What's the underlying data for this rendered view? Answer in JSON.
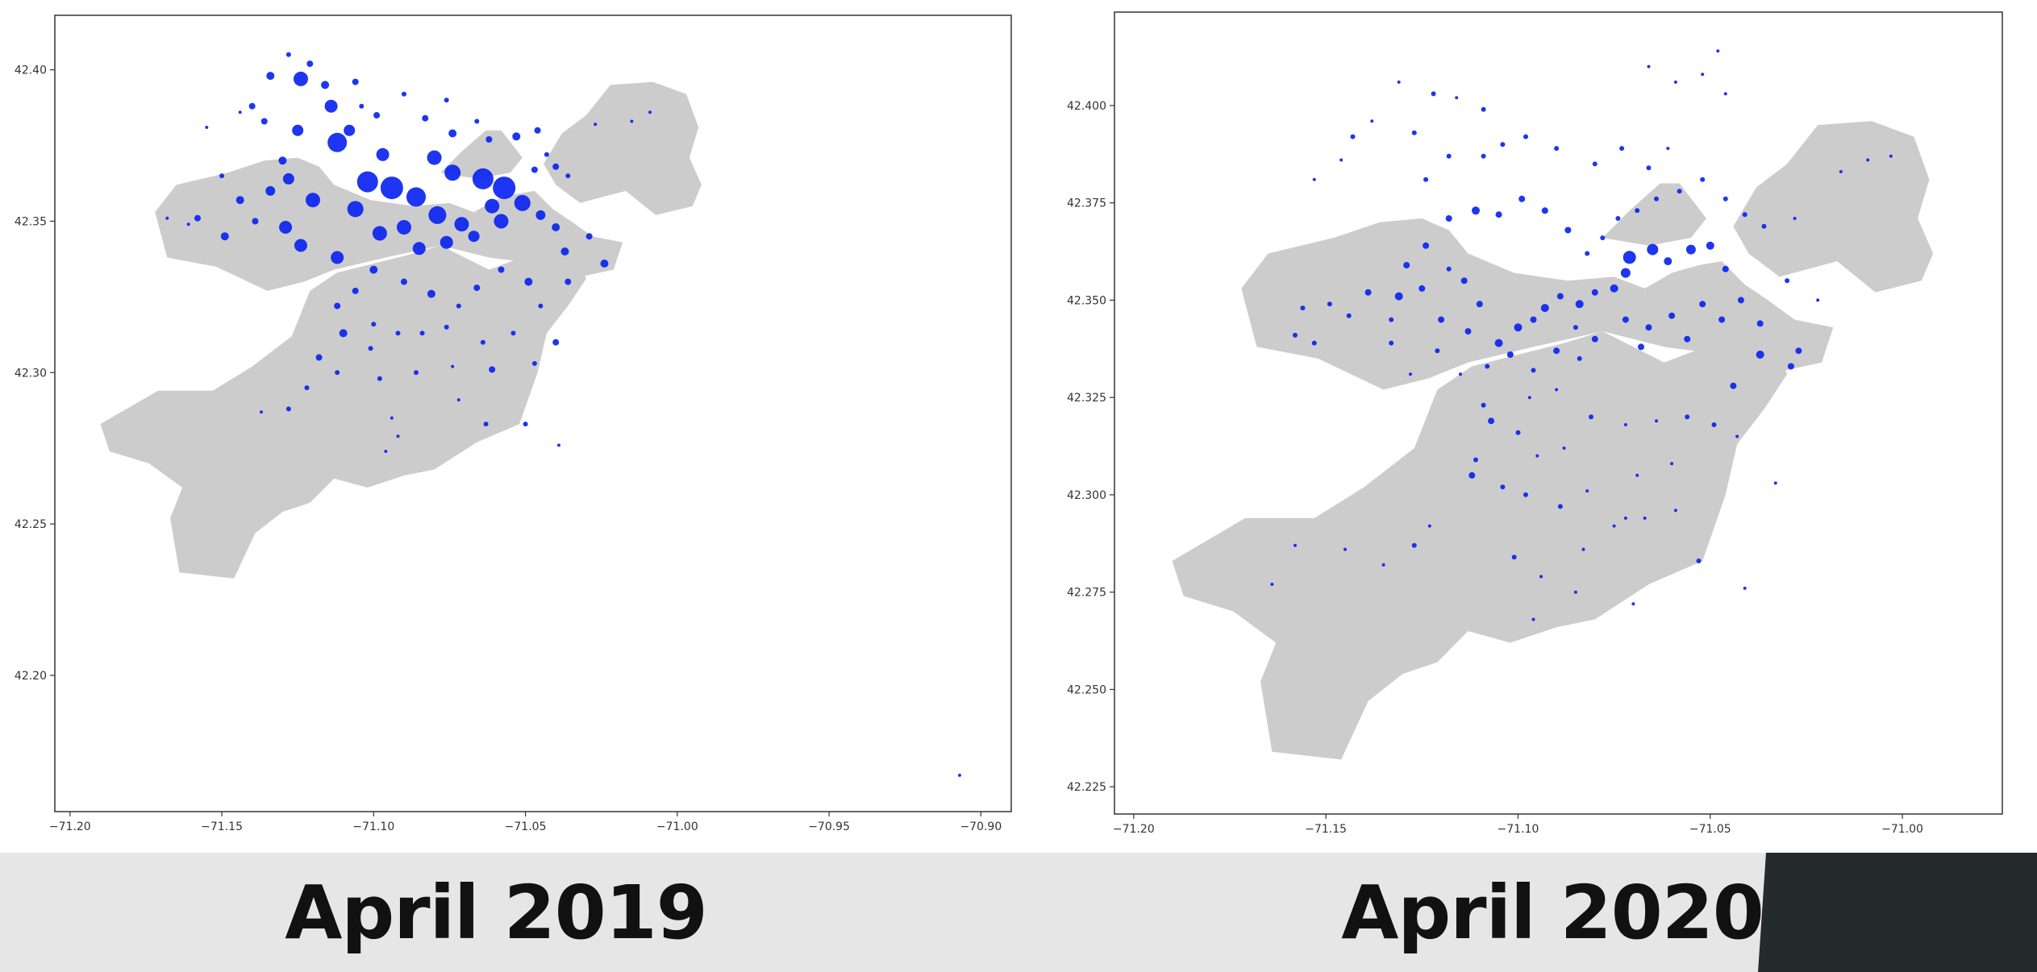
{
  "colors": {
    "land": "#cccccc",
    "marker": "#0b24f0",
    "banner": "#e6e6e6",
    "corner": "#252a2a",
    "caption": "#111111"
  },
  "captions": {
    "left": "April 2019",
    "right": "April 2020"
  },
  "chart_data": [
    {
      "type": "scatter",
      "title": "",
      "xlabel": "",
      "ylabel": "",
      "xlim": [
        -71.205,
        -70.89
      ],
      "ylim": [
        42.155,
        42.418
      ],
      "xticks": [
        -71.2,
        -71.15,
        -71.1,
        -71.05,
        -71.0,
        -70.95,
        -70.9
      ],
      "xtick_labels": [
        "−71.20",
        "−71.15",
        "−71.10",
        "−71.05",
        "−71.00",
        "−70.95",
        "−70.90"
      ],
      "yticks": [
        42.2,
        42.25,
        42.3,
        42.35,
        42.4
      ],
      "ytick_labels": [
        "42.20",
        "42.25",
        "42.30",
        "42.35",
        "42.40"
      ],
      "grid": false,
      "legend": "none",
      "background_map": "Boston neighborhoods (grey polygons)",
      "points": [
        [
          -71.124,
          42.397,
          9
        ],
        [
          -71.114,
          42.388,
          8
        ],
        [
          -71.112,
          42.376,
          12
        ],
        [
          -71.102,
          42.363,
          13
        ],
        [
          -71.094,
          42.361,
          14
        ],
        [
          -71.086,
          42.358,
          12
        ],
        [
          -71.079,
          42.352,
          11
        ],
        [
          -71.064,
          42.364,
          13
        ],
        [
          -71.057,
          42.361,
          14
        ],
        [
          -71.051,
          42.356,
          10
        ],
        [
          -71.058,
          42.35,
          9
        ],
        [
          -71.071,
          42.349,
          9
        ],
        [
          -71.09,
          42.348,
          9
        ],
        [
          -71.106,
          42.354,
          10
        ],
        [
          -71.12,
          42.357,
          9
        ],
        [
          -71.129,
          42.348,
          8
        ],
        [
          -71.124,
          42.342,
          8
        ],
        [
          -71.112,
          42.338,
          8
        ],
        [
          -71.098,
          42.346,
          9
        ],
        [
          -71.085,
          42.341,
          8
        ],
        [
          -71.076,
          42.343,
          8
        ],
        [
          -71.067,
          42.345,
          7
        ],
        [
          -71.061,
          42.355,
          9
        ],
        [
          -71.074,
          42.366,
          10
        ],
        [
          -71.08,
          42.371,
          9
        ],
        [
          -71.097,
          42.372,
          8
        ],
        [
          -71.108,
          42.38,
          7
        ],
        [
          -71.125,
          42.38,
          7
        ],
        [
          -71.128,
          42.364,
          7
        ],
        [
          -71.134,
          42.36,
          6
        ],
        [
          -71.144,
          42.357,
          5
        ],
        [
          -71.149,
          42.345,
          5
        ],
        [
          -71.139,
          42.35,
          4
        ],
        [
          -71.158,
          42.351,
          4
        ],
        [
          -71.13,
          42.37,
          5
        ],
        [
          -71.136,
          42.383,
          4
        ],
        [
          -71.14,
          42.388,
          4
        ],
        [
          -71.134,
          42.398,
          5
        ],
        [
          -71.128,
          42.405,
          3
        ],
        [
          -71.121,
          42.402,
          4
        ],
        [
          -71.116,
          42.395,
          5
        ],
        [
          -71.106,
          42.396,
          4
        ],
        [
          -71.104,
          42.388,
          3
        ],
        [
          -71.099,
          42.385,
          4
        ],
        [
          -71.09,
          42.392,
          3
        ],
        [
          -71.083,
          42.384,
          4
        ],
        [
          -71.076,
          42.39,
          3
        ],
        [
          -71.074,
          42.379,
          5
        ],
        [
          -71.066,
          42.383,
          3
        ],
        [
          -71.062,
          42.377,
          4
        ],
        [
          -71.053,
          42.378,
          5
        ],
        [
          -71.046,
          42.38,
          4
        ],
        [
          -71.043,
          42.372,
          3
        ],
        [
          -71.04,
          42.368,
          4
        ],
        [
          -71.036,
          42.365,
          3
        ],
        [
          -71.047,
          42.367,
          4
        ],
        [
          -71.045,
          42.352,
          6
        ],
        [
          -71.04,
          42.348,
          5
        ],
        [
          -71.037,
          42.34,
          5
        ],
        [
          -71.029,
          42.345,
          4
        ],
        [
          -71.024,
          42.336,
          5
        ],
        [
          -71.036,
          42.33,
          4
        ],
        [
          -71.049,
          42.33,
          5
        ],
        [
          -71.058,
          42.334,
          4
        ],
        [
          -71.066,
          42.328,
          4
        ],
        [
          -71.072,
          42.322,
          3
        ],
        [
          -71.081,
          42.326,
          5
        ],
        [
          -71.09,
          42.33,
          4
        ],
        [
          -71.1,
          42.334,
          5
        ],
        [
          -71.106,
          42.327,
          4
        ],
        [
          -71.112,
          42.322,
          4
        ],
        [
          -71.11,
          42.313,
          5
        ],
        [
          -71.1,
          42.316,
          3
        ],
        [
          -71.092,
          42.313,
          3
        ],
        [
          -71.084,
          42.313,
          3
        ],
        [
          -71.076,
          42.315,
          3
        ],
        [
          -71.064,
          42.31,
          3
        ],
        [
          -71.054,
          42.313,
          3
        ],
        [
          -71.047,
          42.303,
          3
        ],
        [
          -71.04,
          42.31,
          4
        ],
        [
          -71.061,
          42.301,
          4
        ],
        [
          -71.074,
          42.302,
          2
        ],
        [
          -71.086,
          42.3,
          3
        ],
        [
          -71.098,
          42.298,
          3
        ],
        [
          -71.112,
          42.3,
          3
        ],
        [
          -71.118,
          42.305,
          4
        ],
        [
          -71.122,
          42.295,
          3
        ],
        [
          -71.128,
          42.288,
          3
        ],
        [
          -71.137,
          42.287,
          2
        ],
        [
          -71.094,
          42.285,
          2
        ],
        [
          -71.072,
          42.291,
          2
        ],
        [
          -71.063,
          42.283,
          3
        ],
        [
          -71.05,
          42.283,
          3
        ],
        [
          -71.039,
          42.276,
          2
        ],
        [
          -71.092,
          42.279,
          2
        ],
        [
          -71.096,
          42.274,
          2
        ],
        [
          -71.015,
          42.383,
          2
        ],
        [
          -71.009,
          42.386,
          2
        ],
        [
          -71.027,
          42.382,
          2
        ],
        [
          -71.168,
          42.351,
          2
        ],
        [
          -71.161,
          42.349,
          2
        ],
        [
          -71.15,
          42.365,
          3
        ],
        [
          -71.155,
          42.381,
          2
        ],
        [
          -71.144,
          42.386,
          2
        ],
        [
          -71.101,
          42.308,
          3
        ],
        [
          -71.045,
          42.322,
          3
        ],
        [
          -70.907,
          42.167,
          2
        ]
      ]
    },
    {
      "type": "scatter",
      "title": "",
      "xlabel": "",
      "ylabel": "",
      "xlim": [
        -71.205,
        -70.974
      ],
      "ylim": [
        42.218,
        42.424
      ],
      "xticks": [
        -71.2,
        -71.15,
        -71.1,
        -71.05,
        -71.0
      ],
      "xtick_labels": [
        "−71.20",
        "−71.15",
        "−71.10",
        "−71.05",
        "−71.00"
      ],
      "yticks": [
        42.225,
        42.25,
        42.275,
        42.3,
        42.325,
        42.35,
        42.375,
        42.4
      ],
      "ytick_labels": [
        "42.225",
        "42.250",
        "42.275",
        "42.300",
        "42.325",
        "42.350",
        "42.375",
        "42.400"
      ],
      "grid": false,
      "legend": "none",
      "background_map": "Boston neighborhoods (grey polygons)",
      "points": [
        [
          -71.072,
          42.357,
          6
        ],
        [
          -71.071,
          42.361,
          8
        ],
        [
          -71.065,
          42.363,
          7
        ],
        [
          -71.061,
          42.36,
          5
        ],
        [
          -71.055,
          42.363,
          6
        ],
        [
          -71.05,
          42.364,
          5
        ],
        [
          -71.046,
          42.358,
          4
        ],
        [
          -71.075,
          42.353,
          5
        ],
        [
          -71.08,
          42.352,
          4
        ],
        [
          -71.084,
          42.349,
          5
        ],
        [
          -71.089,
          42.351,
          4
        ],
        [
          -71.093,
          42.348,
          5
        ],
        [
          -71.096,
          42.345,
          4
        ],
        [
          -71.1,
          42.343,
          5
        ],
        [
          -71.105,
          42.339,
          5
        ],
        [
          -71.072,
          42.345,
          4
        ],
        [
          -71.066,
          42.343,
          4
        ],
        [
          -71.06,
          42.346,
          4
        ],
        [
          -71.056,
          42.34,
          4
        ],
        [
          -71.052,
          42.349,
          4
        ],
        [
          -71.047,
          42.345,
          4
        ],
        [
          -71.042,
          42.35,
          4
        ],
        [
          -71.037,
          42.344,
          4
        ],
        [
          -71.068,
          42.338,
          4
        ],
        [
          -71.08,
          42.34,
          4
        ],
        [
          -71.084,
          42.335,
          3
        ],
        [
          -71.09,
          42.337,
          4
        ],
        [
          -71.096,
          42.332,
          3
        ],
        [
          -71.102,
          42.336,
          4
        ],
        [
          -71.108,
          42.333,
          3
        ],
        [
          -71.113,
          42.342,
          4
        ],
        [
          -71.11,
          42.349,
          4
        ],
        [
          -71.114,
          42.355,
          4
        ],
        [
          -71.118,
          42.358,
          3
        ],
        [
          -71.125,
          42.353,
          4
        ],
        [
          -71.131,
          42.351,
          5
        ],
        [
          -71.133,
          42.345,
          3
        ],
        [
          -71.139,
          42.352,
          4
        ],
        [
          -71.144,
          42.346,
          3
        ],
        [
          -71.149,
          42.349,
          3
        ],
        [
          -71.156,
          42.348,
          3
        ],
        [
          -71.158,
          42.341,
          3
        ],
        [
          -71.153,
          42.339,
          3
        ],
        [
          -71.129,
          42.359,
          4
        ],
        [
          -71.124,
          42.364,
          4
        ],
        [
          -71.118,
          42.371,
          4
        ],
        [
          -71.111,
          42.373,
          5
        ],
        [
          -71.105,
          42.372,
          4
        ],
        [
          -71.099,
          42.376,
          4
        ],
        [
          -71.093,
          42.373,
          4
        ],
        [
          -71.087,
          42.368,
          4
        ],
        [
          -71.082,
          42.362,
          3
        ],
        [
          -71.078,
          42.366,
          3
        ],
        [
          -71.074,
          42.371,
          3
        ],
        [
          -71.069,
          42.373,
          3
        ],
        [
          -71.064,
          42.376,
          3
        ],
        [
          -71.058,
          42.378,
          3
        ],
        [
          -71.052,
          42.381,
          3
        ],
        [
          -71.046,
          42.376,
          3
        ],
        [
          -71.041,
          42.372,
          3
        ],
        [
          -71.036,
          42.369,
          3
        ],
        [
          -71.028,
          42.371,
          2
        ],
        [
          -71.016,
          42.383,
          2
        ],
        [
          -71.009,
          42.386,
          2
        ],
        [
          -71.003,
          42.387,
          2
        ],
        [
          -71.124,
          42.381,
          3
        ],
        [
          -71.118,
          42.387,
          3
        ],
        [
          -71.109,
          42.387,
          3
        ],
        [
          -71.104,
          42.39,
          3
        ],
        [
          -71.098,
          42.392,
          3
        ],
        [
          -71.09,
          42.389,
          3
        ],
        [
          -71.08,
          42.385,
          3
        ],
        [
          -71.073,
          42.389,
          3
        ],
        [
          -71.066,
          42.384,
          3
        ],
        [
          -71.061,
          42.389,
          2
        ],
        [
          -71.127,
          42.393,
          3
        ],
        [
          -71.138,
          42.396,
          2
        ],
        [
          -71.143,
          42.392,
          3
        ],
        [
          -71.146,
          42.386,
          2
        ],
        [
          -71.153,
          42.381,
          2
        ],
        [
          -71.131,
          42.406,
          2
        ],
        [
          -71.122,
          42.403,
          3
        ],
        [
          -71.116,
          42.402,
          2
        ],
        [
          -71.109,
          42.399,
          3
        ],
        [
          -71.066,
          42.41,
          2
        ],
        [
          -71.052,
          42.408,
          2
        ],
        [
          -71.048,
          42.414,
          2
        ],
        [
          -71.059,
          42.406,
          2
        ],
        [
          -71.046,
          42.403,
          2
        ],
        [
          -71.133,
          42.339,
          3
        ],
        [
          -71.121,
          42.337,
          3
        ],
        [
          -71.115,
          42.331,
          2
        ],
        [
          -71.128,
          42.331,
          2
        ],
        [
          -71.109,
          42.323,
          3
        ],
        [
          -71.107,
          42.319,
          4
        ],
        [
          -71.111,
          42.309,
          3
        ],
        [
          -71.1,
          42.316,
          3
        ],
        [
          -71.095,
          42.31,
          2
        ],
        [
          -71.088,
          42.312,
          2
        ],
        [
          -71.081,
          42.32,
          3
        ],
        [
          -71.072,
          42.318,
          2
        ],
        [
          -71.064,
          42.319,
          2
        ],
        [
          -71.056,
          42.32,
          3
        ],
        [
          -71.049,
          42.318,
          3
        ],
        [
          -71.043,
          42.315,
          2
        ],
        [
          -71.06,
          42.308,
          2
        ],
        [
          -71.069,
          42.305,
          2
        ],
        [
          -71.082,
          42.301,
          2
        ],
        [
          -71.089,
          42.297,
          3
        ],
        [
          -71.098,
          42.3,
          3
        ],
        [
          -71.104,
          42.302,
          3
        ],
        [
          -71.112,
          42.305,
          4
        ],
        [
          -71.123,
          42.292,
          2
        ],
        [
          -71.127,
          42.287,
          3
        ],
        [
          -71.135,
          42.282,
          2
        ],
        [
          -71.145,
          42.286,
          2
        ],
        [
          -71.164,
          42.277,
          2
        ],
        [
          -71.158,
          42.287,
          2
        ],
        [
          -71.101,
          42.284,
          3
        ],
        [
          -71.094,
          42.279,
          2
        ],
        [
          -71.083,
          42.286,
          2
        ],
        [
          -71.075,
          42.292,
          2
        ],
        [
          -71.067,
          42.294,
          2
        ],
        [
          -71.059,
          42.296,
          2
        ],
        [
          -71.053,
          42.283,
          3
        ],
        [
          -71.041,
          42.276,
          2
        ],
        [
          -71.033,
          42.303,
          2
        ],
        [
          -71.029,
          42.333,
          4
        ],
        [
          -71.027,
          42.337,
          4
        ],
        [
          -71.037,
          42.336,
          5
        ],
        [
          -71.044,
          42.328,
          4
        ],
        [
          -71.03,
          42.355,
          3
        ],
        [
          -71.022,
          42.35,
          2
        ],
        [
          -71.085,
          42.343,
          3
        ],
        [
          -71.09,
          42.327,
          2
        ],
        [
          -71.097,
          42.325,
          2
        ],
        [
          -71.12,
          42.345,
          4
        ],
        [
          -71.072,
          42.294,
          2
        ],
        [
          -71.085,
          42.275,
          2
        ],
        [
          -71.096,
          42.268,
          2
        ],
        [
          -71.07,
          42.272,
          2
        ]
      ]
    }
  ]
}
